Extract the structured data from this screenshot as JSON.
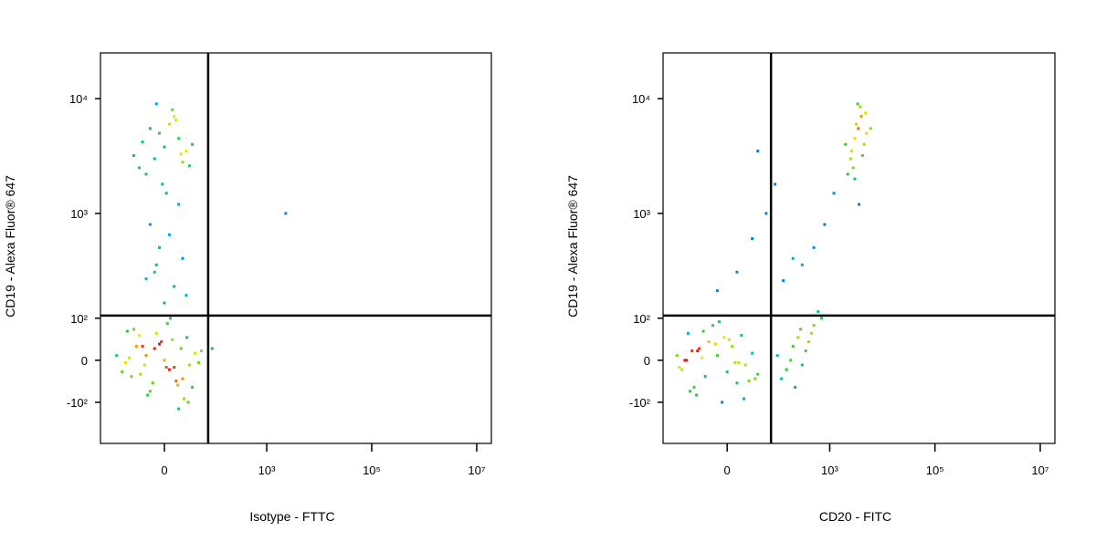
{
  "chart_data": [
    {
      "type": "scatter",
      "x_label": "Isotype - FTTC",
      "y_label": "CD19 - Alexa Fluor® 647",
      "xscale": "biexponential",
      "yscale": "biexponential",
      "xlim": [
        -185,
        19000000
      ],
      "ylim": [
        -270,
        25000
      ],
      "xticks": [
        0,
        {
          "value": 1000,
          "label": "10³"
        },
        {
          "value": 100000,
          "label": "10⁵"
        },
        {
          "value": 10000000,
          "label": "10⁷"
        }
      ],
      "yticks": [
        {
          "value": -100,
          "label": "-10²"
        },
        0,
        {
          "value": 100,
          "label": "10²"
        },
        {
          "value": 1000,
          "label": "10³"
        },
        {
          "value": 10000,
          "label": "10⁴"
        }
      ],
      "quadrant_gate": {
        "x": 75,
        "y": 108
      },
      "x": [
        -20,
        5,
        -35,
        12,
        -8,
        30,
        -50,
        18,
        -15,
        0,
        8,
        -28,
        40,
        -60,
        22,
        -5,
        10,
        -40,
        55,
        -12,
        3,
        -70,
        26,
        -22,
        15,
        -3,
        -45,
        35,
        -90,
        6,
        -18,
        48,
        -30,
        20,
        -10,
        2,
        -55,
        28,
        -25,
        14,
        -10,
        15,
        -30,
        5,
        25,
        -5,
        10,
        -20,
        35,
        0,
        -15,
        20,
        -40,
        8,
        -25,
        12,
        30,
        -8,
        18,
        -2,
        0,
        10,
        -10,
        20,
        -5,
        5,
        -15,
        15,
        2,
        -8,
        25,
        -20,
        2300,
        90
      ],
      "values": [
        10,
        -20,
        30,
        -45,
        60,
        -10,
        5,
        25,
        -70,
        0,
        45,
        -30,
        15,
        -5,
        -90,
        35,
        -15,
        70,
        20,
        -50,
        85,
        -25,
        50,
        -10,
        -120,
        40,
        -35,
        -60,
        10,
        100,
        -80,
        -5,
        55,
        -40,
        25,
        -15,
        65,
        -100,
        30,
        -55,
        3000,
        4500,
        2500,
        6000,
        3500,
        5000,
        7000,
        2200,
        4000,
        3800,
        5500,
        2800,
        3200,
        8000,
        4200,
        6500,
        2600,
        9000,
        3300,
        1800,
        150,
        220,
        300,
        400,
        500,
        650,
        800,
        1200,
        1500,
        350,
        180,
        260,
        1000,
        25
      ]
    },
    {
      "type": "scatter",
      "x_label": "CD20 - FITC",
      "y_label": "CD19 - Alexa Fluor® 647",
      "xscale": "biexponential",
      "yscale": "biexponential",
      "xlim": [
        -185,
        19000000
      ],
      "ylim": [
        -270,
        25000
      ],
      "xticks": [
        0,
        {
          "value": 1000,
          "label": "10³"
        },
        {
          "value": 100000,
          "label": "10⁵"
        },
        {
          "value": 10000000,
          "label": "10⁷"
        }
      ],
      "yticks": [
        {
          "value": -100,
          "label": "-10²"
        },
        0,
        {
          "value": 100,
          "label": "10²"
        },
        {
          "value": 1000,
          "label": "10³"
        },
        {
          "value": 10000,
          "label": "10⁴"
        }
      ],
      "quadrant_gate": {
        "x": 75,
        "y": 108
      },
      "x": [
        -30,
        0,
        -50,
        10,
        -20,
        20,
        -70,
        5,
        -40,
        -10,
        15,
        -25,
        30,
        -90,
        -5,
        -35,
        8,
        -60,
        40,
        -15,
        -45,
        2,
        -80,
        25,
        -12,
        -55,
        12,
        -28,
        -100,
        18,
        -38,
        -3,
        35,
        -65,
        -8,
        100,
        150,
        200,
        250,
        300,
        400,
        500,
        600,
        120,
        180,
        350,
        450,
        700,
        220,
        280,
        2500,
        3000,
        3500,
        4000,
        2800,
        3200,
        4500,
        2200,
        3800,
        5000,
        2600,
        3400,
        4200,
        6000,
        3000,
        3600,
        2000,
        4800,
        10,
        30,
        60,
        90,
        130,
        200,
        300,
        500,
        800,
        1200,
        -10,
        40
      ],
      "values": [
        5,
        -25,
        20,
        -50,
        40,
        -10,
        0,
        30,
        -80,
        10,
        55,
        -35,
        15,
        -15,
        -100,
        25,
        -5,
        60,
        -30,
        80,
        -60,
        45,
        -20,
        -45,
        35,
        -70,
        -5,
        65,
        10,
        -90,
        20,
        50,
        -40,
        0,
        90,
        10,
        -20,
        30,
        50,
        -10,
        40,
        80,
        120,
        -40,
        0,
        20,
        60,
        100,
        -60,
        70,
        3000,
        4500,
        5500,
        7000,
        2500,
        6000,
        4000,
        2200,
        8500,
        5000,
        3500,
        9000,
        3200,
        5500,
        2000,
        1200,
        4000,
        7500,
        300,
        600,
        1000,
        1800,
        250,
        400,
        350,
        500,
        800,
        1500,
        200,
        3500
      ]
    }
  ]
}
